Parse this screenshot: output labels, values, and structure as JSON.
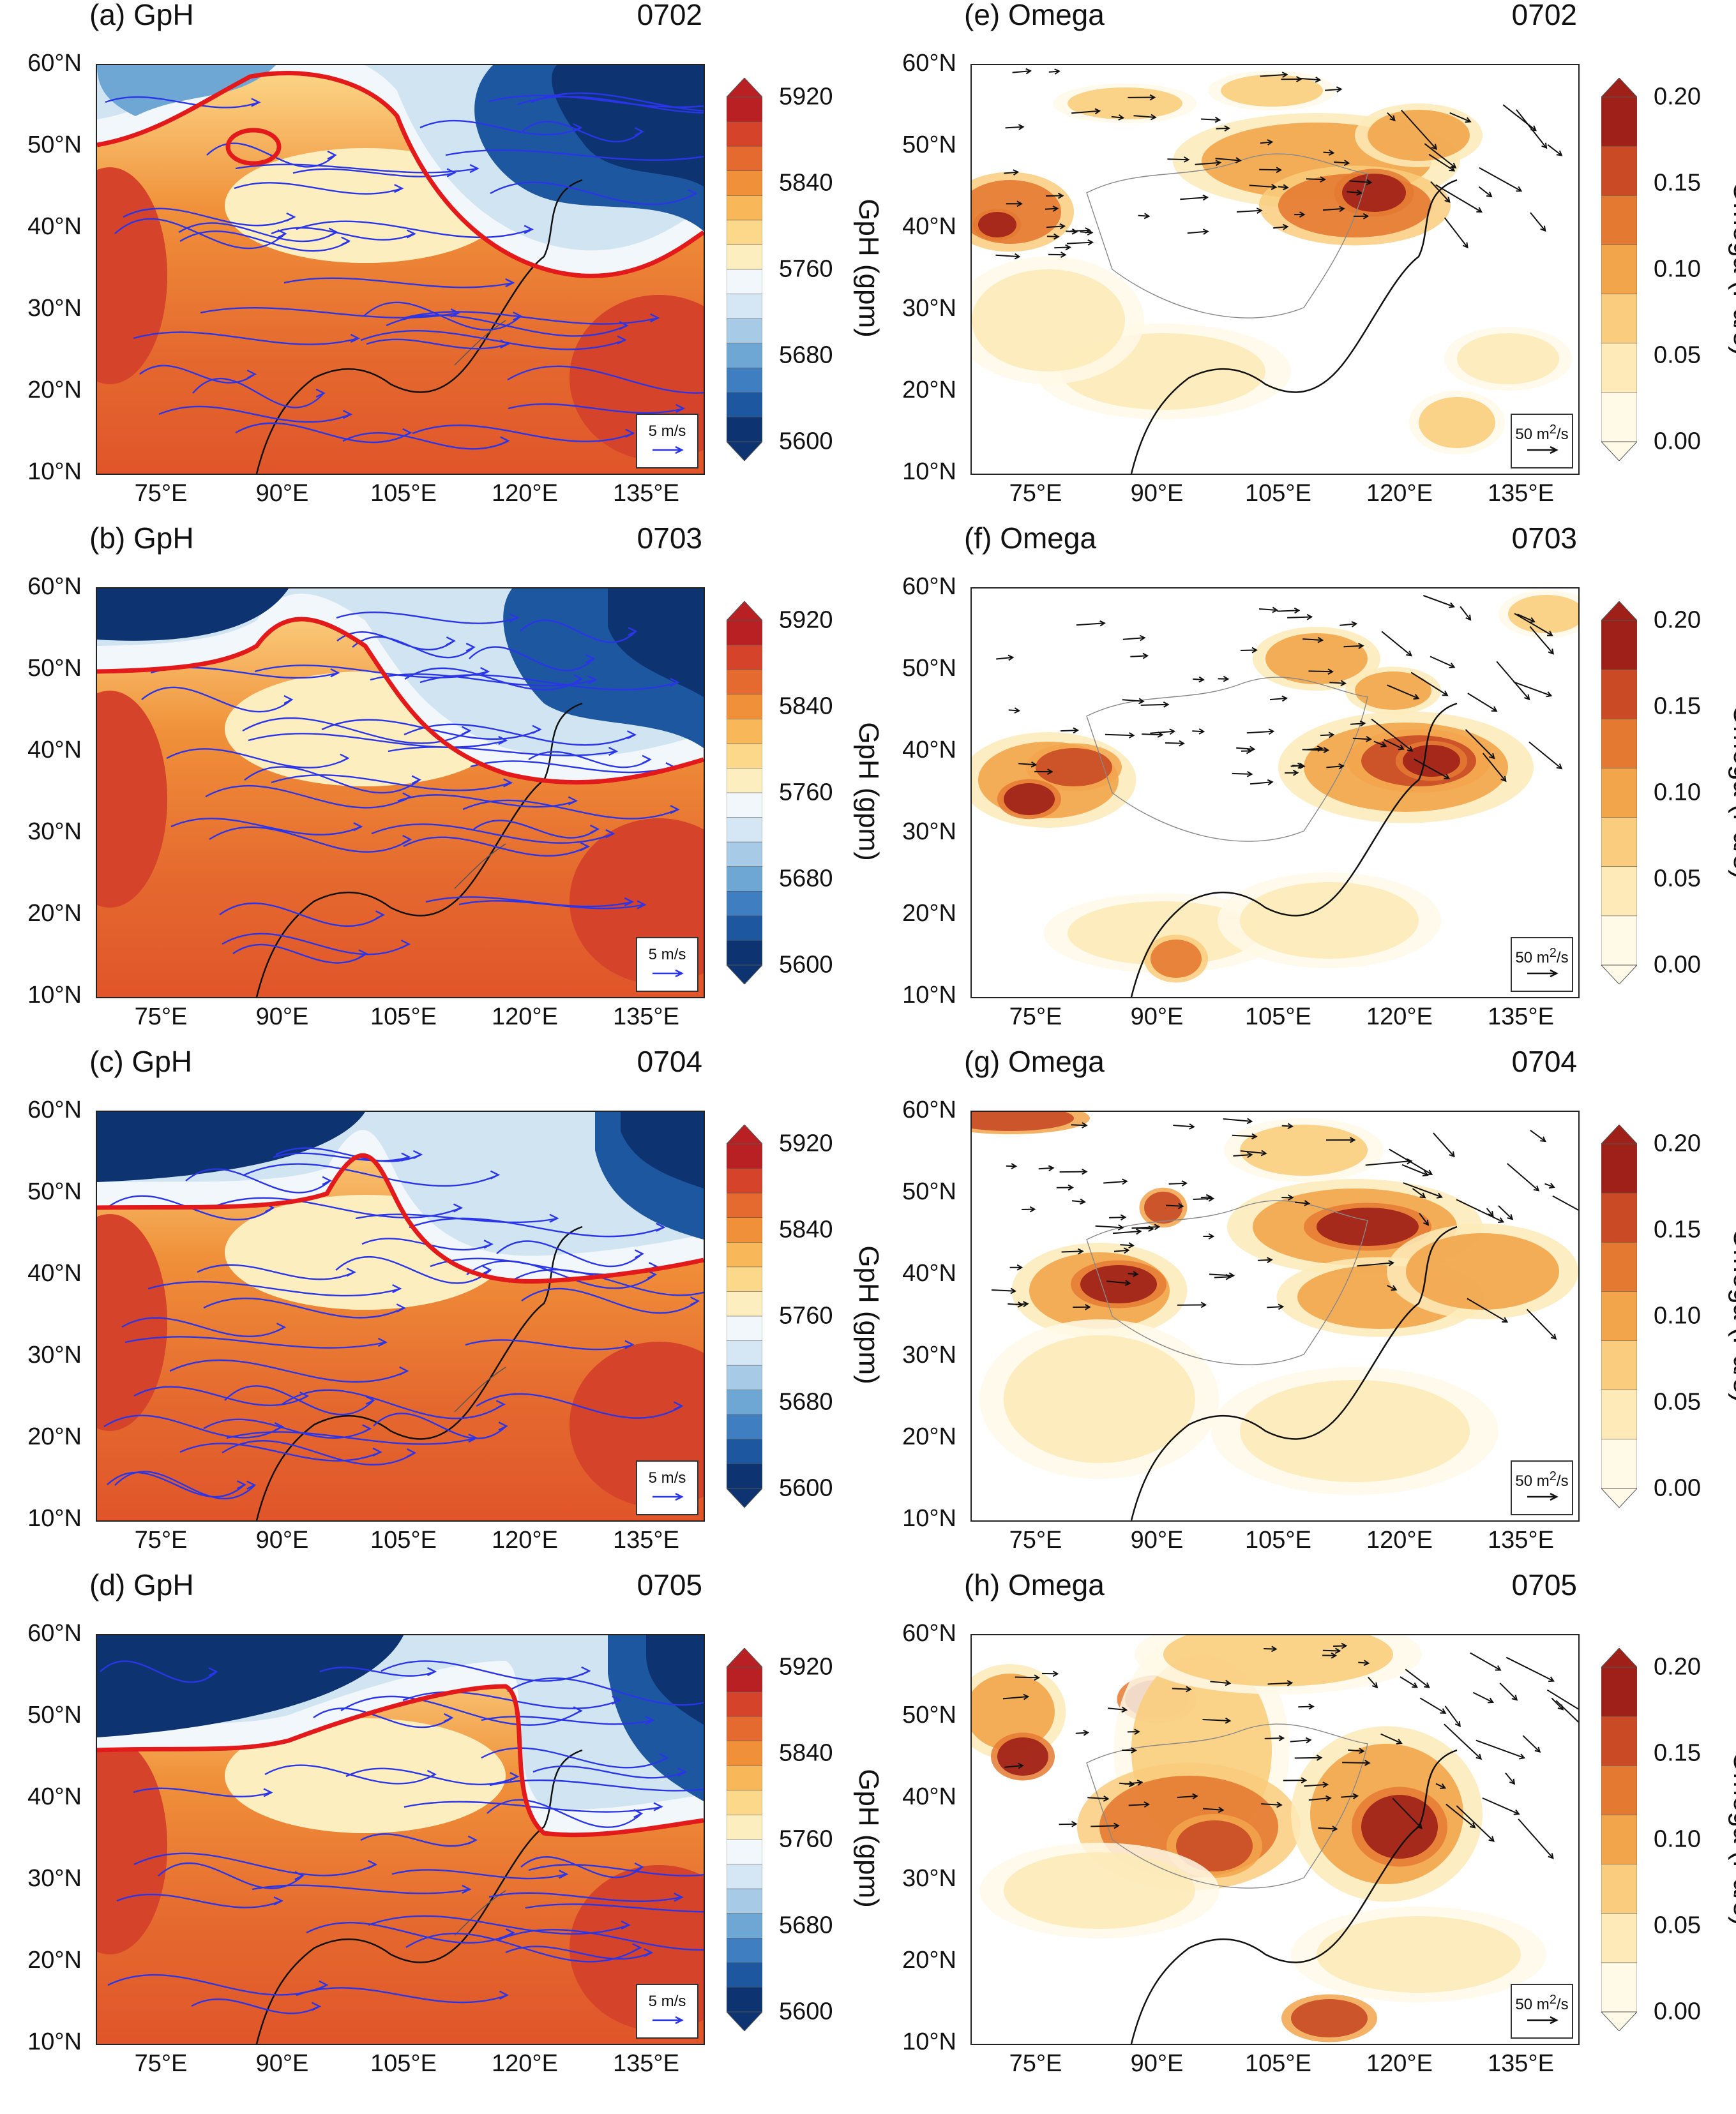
{
  "axes": {
    "lat_labels": [
      "60°N",
      "50°N",
      "40°N",
      "30°N",
      "20°N",
      "10°N"
    ],
    "lon_labels": [
      "75°E",
      "90°E",
      "105°E",
      "120°E",
      "135°E"
    ]
  },
  "gph_colorbar": {
    "title": "GpH (gpm)",
    "ticks": [
      "5920",
      "5840",
      "5760",
      "5680",
      "5600"
    ],
    "colors": [
      "#f2f7fb",
      "#d5e6f4",
      "#a7cbe6",
      "#6fa7d4",
      "#3f7fc1",
      "#1d57a0",
      "#0d3470"
    ],
    "warm_colors": [
      "#fdeec0",
      "#fcd98a",
      "#f8b85a",
      "#f0913a",
      "#e56a2f",
      "#d4432a",
      "#b82024"
    ]
  },
  "omega_colorbar": {
    "title": "Omega (Pa/s)",
    "ticks": [
      "0.20",
      "0.15",
      "0.10",
      "0.05",
      "0.00"
    ],
    "colors": [
      "#fff9e8",
      "#fdeab8",
      "#f9cd7d",
      "#f2a54b",
      "#e47a32",
      "#c94a25",
      "#9e2018"
    ]
  },
  "gph_ref_vector": "5 m/s",
  "omega_ref_vector": "50 m",
  "omega_ref_unit_sup": "2",
  "omega_ref_unit_tail": "/s",
  "panels": [
    {
      "id": "a",
      "title": "(a) GpH",
      "date": "0702",
      "kind": "gph"
    },
    {
      "id": "b",
      "title": "(b) GpH",
      "date": "0703",
      "kind": "gph"
    },
    {
      "id": "c",
      "title": "(c) GpH",
      "date": "0704",
      "kind": "gph"
    },
    {
      "id": "d",
      "title": "(d) GpH",
      "date": "0705",
      "kind": "gph"
    },
    {
      "id": "e",
      "title": "(e) Omega",
      "date": "0702",
      "kind": "omega"
    },
    {
      "id": "f",
      "title": "(f) Omega",
      "date": "0703",
      "kind": "omega"
    },
    {
      "id": "g",
      "title": "(g) Omega",
      "date": "0704",
      "kind": "omega"
    },
    {
      "id": "h",
      "title": "(h) Omega",
      "date": "0705",
      "kind": "omega"
    }
  ]
}
